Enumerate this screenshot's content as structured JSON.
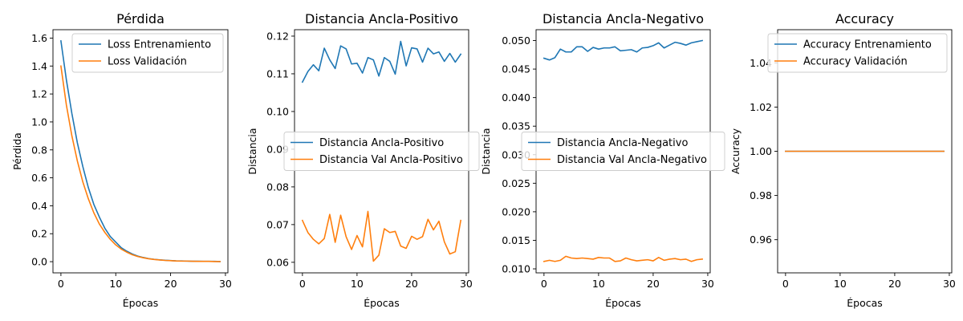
{
  "chart_data": [
    {
      "type": "line",
      "title": "Pérdida",
      "xlabel": "Épocas",
      "ylabel": "Pérdida",
      "xlim": [
        -1.45,
        30.45
      ],
      "ylim": [
        -0.08,
        1.66
      ],
      "xticks": [
        0,
        10,
        20,
        30
      ],
      "yticks": [
        0.0,
        0.2,
        0.4,
        0.6,
        0.8,
        1.0,
        1.2,
        1.4,
        1.6
      ],
      "ytick_decimals": 1,
      "legend_position": "upper right",
      "x": [
        0,
        1,
        2,
        3,
        4,
        5,
        6,
        7,
        8,
        9,
        10,
        11,
        12,
        13,
        14,
        15,
        16,
        17,
        18,
        19,
        20,
        21,
        22,
        23,
        24,
        25,
        26,
        27,
        28,
        29
      ],
      "series": [
        {
          "name": "Loss Entrenamiento",
          "color": "#1f77b4",
          "values": [
            1.58,
            1.3,
            1.06,
            0.85,
            0.68,
            0.53,
            0.41,
            0.32,
            0.24,
            0.18,
            0.14,
            0.1,
            0.075,
            0.055,
            0.04,
            0.03,
            0.022,
            0.017,
            0.013,
            0.01,
            0.008,
            0.006,
            0.005,
            0.004,
            0.003,
            0.003,
            0.002,
            0.002,
            0.002,
            0.001
          ]
        },
        {
          "name": "Loss Validación",
          "color": "#ff7f0e",
          "values": [
            1.4,
            1.12,
            0.9,
            0.72,
            0.57,
            0.45,
            0.35,
            0.27,
            0.21,
            0.16,
            0.12,
            0.09,
            0.068,
            0.05,
            0.037,
            0.028,
            0.021,
            0.016,
            0.012,
            0.009,
            0.007,
            0.005,
            0.004,
            0.004,
            0.003,
            0.002,
            0.002,
            0.002,
            0.001,
            0.001
          ]
        }
      ]
    },
    {
      "type": "line",
      "title": "Distancia Ancla-Positivo",
      "xlabel": "Épocas",
      "ylabel": "Distancia",
      "xlim": [
        -1.45,
        30.45
      ],
      "ylim": [
        0.0572,
        0.1217
      ],
      "xticks": [
        0,
        10,
        20,
        30
      ],
      "yticks": [
        0.06,
        0.07,
        0.08,
        0.09,
        0.1,
        0.11,
        0.12
      ],
      "ytick_decimals": 2,
      "legend_position": "center",
      "x": [
        0,
        1,
        2,
        3,
        4,
        5,
        6,
        7,
        8,
        9,
        10,
        11,
        12,
        13,
        14,
        15,
        16,
        17,
        18,
        19,
        20,
        21,
        22,
        23,
        24,
        25,
        26,
        27,
        28,
        29
      ],
      "series": [
        {
          "name": "Distancia Ancla-Positivo",
          "color": "#1f77b4",
          "values": [
            0.1078,
            0.1106,
            0.1124,
            0.1108,
            0.1168,
            0.1137,
            0.1114,
            0.1174,
            0.1166,
            0.1126,
            0.1128,
            0.1102,
            0.1143,
            0.1137,
            0.1094,
            0.1143,
            0.1133,
            0.1099,
            0.1186,
            0.1121,
            0.1169,
            0.1166,
            0.1131,
            0.1168,
            0.1153,
            0.1158,
            0.1133,
            0.1154,
            0.1131,
            0.1152
          ]
        },
        {
          "name": "Distancia Val Ancla-Positivo",
          "color": "#ff7f0e",
          "values": [
            0.0711,
            0.0679,
            0.0661,
            0.0649,
            0.0663,
            0.0727,
            0.0653,
            0.0725,
            0.0668,
            0.0634,
            0.0671,
            0.0641,
            0.0735,
            0.0603,
            0.0619,
            0.0689,
            0.0679,
            0.0682,
            0.0643,
            0.0637,
            0.0669,
            0.0661,
            0.0668,
            0.0714,
            0.0686,
            0.0709,
            0.0654,
            0.0622,
            0.0628,
            0.0711
          ]
        }
      ]
    },
    {
      "type": "line",
      "title": "Distancia Ancla-Negativo",
      "xlabel": "Épocas",
      "ylabel": "Distancia",
      "xlim": [
        -1.45,
        30.45
      ],
      "ylim": [
        0.0093,
        0.0519
      ],
      "xticks": [
        0,
        10,
        20,
        30
      ],
      "yticks": [
        0.01,
        0.015,
        0.02,
        0.025,
        0.03,
        0.035,
        0.04,
        0.045,
        0.05
      ],
      "ytick_decimals": 3,
      "legend_position": "center",
      "x": [
        0,
        1,
        2,
        3,
        4,
        5,
        6,
        7,
        8,
        9,
        10,
        11,
        12,
        13,
        14,
        15,
        16,
        17,
        18,
        19,
        20,
        21,
        22,
        23,
        24,
        25,
        26,
        27,
        28,
        29
      ],
      "series": [
        {
          "name": "Distancia Ancla-Negativo",
          "color": "#1f77b4",
          "values": [
            0.0469,
            0.0466,
            0.047,
            0.0485,
            0.048,
            0.048,
            0.0489,
            0.0489,
            0.0481,
            0.0488,
            0.0485,
            0.0487,
            0.0487,
            0.0489,
            0.0482,
            0.0483,
            0.0484,
            0.048,
            0.0487,
            0.0488,
            0.0491,
            0.0496,
            0.0487,
            0.0492,
            0.0497,
            0.0495,
            0.0492,
            0.0496,
            0.0498,
            0.05
          ]
        },
        {
          "name": "Distancia Val Ancla-Negativo",
          "color": "#ff7f0e",
          "values": [
            0.0113,
            0.0115,
            0.0113,
            0.0115,
            0.0122,
            0.0119,
            0.0118,
            0.0119,
            0.0118,
            0.0117,
            0.012,
            0.0119,
            0.0119,
            0.0113,
            0.0114,
            0.0119,
            0.0116,
            0.0114,
            0.0115,
            0.0116,
            0.0114,
            0.012,
            0.0115,
            0.0117,
            0.0118,
            0.0116,
            0.0117,
            0.0113,
            0.0116,
            0.0117
          ]
        }
      ]
    },
    {
      "type": "line",
      "title": "Accuracy",
      "xlabel": "Épocas",
      "ylabel": "Accuracy",
      "xlim": [
        -1.45,
        30.45
      ],
      "ylim": [
        0.945,
        1.055
      ],
      "xticks": [
        0,
        10,
        20,
        30
      ],
      "yticks": [
        0.96,
        0.98,
        1.0,
        1.02,
        1.04
      ],
      "ytick_decimals": 2,
      "legend_position": "upper right",
      "x": [
        0,
        1,
        2,
        3,
        4,
        5,
        6,
        7,
        8,
        9,
        10,
        11,
        12,
        13,
        14,
        15,
        16,
        17,
        18,
        19,
        20,
        21,
        22,
        23,
        24,
        25,
        26,
        27,
        28,
        29
      ],
      "series": [
        {
          "name": "Accuracy Entrenamiento",
          "color": "#1f77b4",
          "values": [
            1.0,
            1.0,
            1.0,
            1.0,
            1.0,
            1.0,
            1.0,
            1.0,
            1.0,
            1.0,
            1.0,
            1.0,
            1.0,
            1.0,
            1.0,
            1.0,
            1.0,
            1.0,
            1.0,
            1.0,
            1.0,
            1.0,
            1.0,
            1.0,
            1.0,
            1.0,
            1.0,
            1.0,
            1.0,
            1.0
          ]
        },
        {
          "name": "Accuracy Validación",
          "color": "#ff7f0e",
          "values": [
            1.0,
            1.0,
            1.0,
            1.0,
            1.0,
            1.0,
            1.0,
            1.0,
            1.0,
            1.0,
            1.0,
            1.0,
            1.0,
            1.0,
            1.0,
            1.0,
            1.0,
            1.0,
            1.0,
            1.0,
            1.0,
            1.0,
            1.0,
            1.0,
            1.0,
            1.0,
            1.0,
            1.0,
            1.0,
            1.0
          ]
        }
      ]
    }
  ]
}
